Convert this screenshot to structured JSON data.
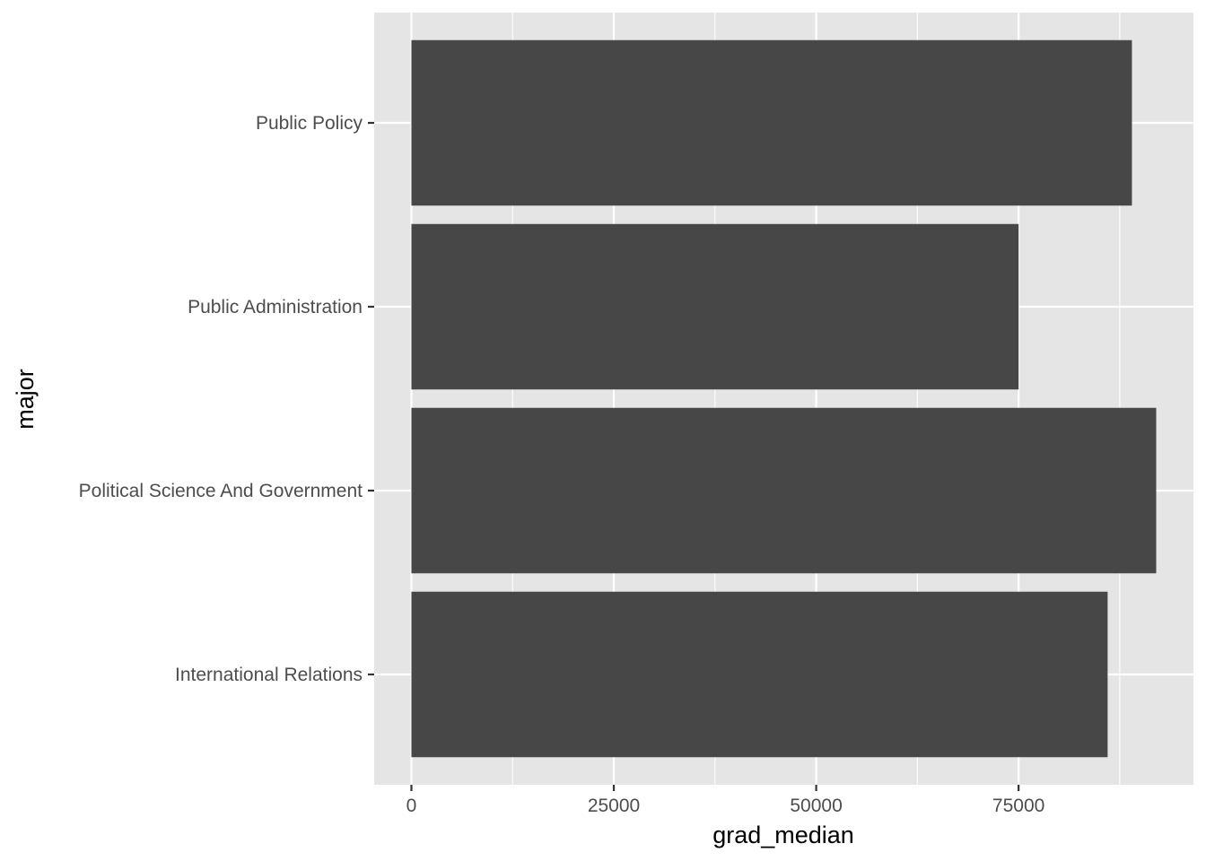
{
  "chart_data": {
    "type": "bar",
    "orientation": "horizontal",
    "categories": [
      "Public Policy",
      "Public Administration",
      "Political Science And Government",
      "International Relations"
    ],
    "values": [
      89000,
      75000,
      92000,
      86000
    ],
    "xlabel": "grad_median",
    "ylabel": "major",
    "xlim": [
      -4600,
      96600
    ],
    "x_ticks": [
      0,
      25000,
      50000,
      75000
    ],
    "x_tick_labels": [
      "0",
      "25000",
      "50000",
      "75000"
    ],
    "grid": true,
    "bar_color": "#474747",
    "panel_color": "#e5e5e5"
  }
}
